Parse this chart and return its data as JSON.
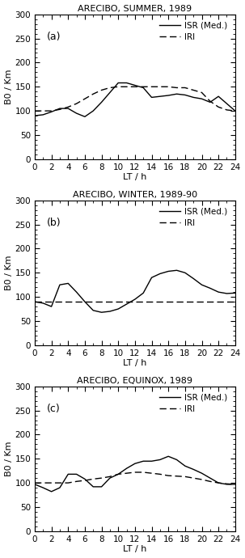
{
  "panels": [
    {
      "title": "ARECIBO, SUMMER, 1989",
      "label": "(a)",
      "isr_x": [
        0,
        1,
        2,
        3,
        4,
        5,
        6,
        7,
        8,
        9,
        10,
        11,
        12,
        13,
        14,
        15,
        16,
        17,
        18,
        19,
        20,
        21,
        22,
        23,
        24
      ],
      "isr_y": [
        90,
        92,
        98,
        105,
        105,
        95,
        88,
        100,
        118,
        138,
        158,
        158,
        153,
        148,
        128,
        130,
        132,
        135,
        133,
        128,
        125,
        118,
        130,
        115,
        100
      ],
      "iri_x": [
        0,
        1,
        2,
        3,
        4,
        5,
        6,
        7,
        8,
        9,
        10,
        11,
        12,
        13,
        14,
        15,
        16,
        17,
        18,
        19,
        20,
        21,
        22,
        23,
        24
      ],
      "iri_y": [
        100,
        100,
        100,
        103,
        108,
        115,
        125,
        135,
        143,
        148,
        150,
        150,
        150,
        150,
        150,
        150,
        150,
        148,
        148,
        143,
        138,
        120,
        108,
        102,
        100
      ]
    },
    {
      "title": "ARECIBO, WINTER, 1989-90",
      "label": "(b)",
      "isr_x": [
        0,
        1,
        2,
        3,
        4,
        5,
        6,
        7,
        8,
        9,
        10,
        11,
        12,
        13,
        14,
        15,
        16,
        17,
        18,
        19,
        20,
        21,
        22,
        23,
        24
      ],
      "isr_y": [
        90,
        87,
        80,
        125,
        128,
        110,
        90,
        72,
        68,
        70,
        75,
        85,
        95,
        108,
        140,
        148,
        153,
        155,
        150,
        138,
        125,
        118,
        110,
        107,
        108
      ],
      "iri_x": [
        0,
        1,
        2,
        3,
        4,
        5,
        6,
        7,
        8,
        9,
        10,
        11,
        12,
        13,
        14,
        15,
        16,
        17,
        18,
        19,
        20,
        21,
        22,
        23,
        24
      ],
      "iri_y": [
        90,
        90,
        90,
        90,
        90,
        90,
        90,
        90,
        90,
        90,
        90,
        90,
        90,
        90,
        90,
        90,
        90,
        90,
        90,
        90,
        90,
        90,
        90,
        90,
        90
      ]
    },
    {
      "title": "ARECIBO, EQUINOX, 1989",
      "label": "(c)",
      "isr_x": [
        0,
        1,
        2,
        3,
        4,
        5,
        6,
        7,
        8,
        9,
        10,
        11,
        12,
        13,
        14,
        15,
        16,
        17,
        18,
        19,
        20,
        21,
        22,
        23,
        24
      ],
      "isr_y": [
        97,
        90,
        82,
        90,
        118,
        118,
        108,
        92,
        92,
        110,
        118,
        130,
        140,
        145,
        145,
        148,
        155,
        148,
        135,
        128,
        120,
        110,
        100,
        97,
        97
      ],
      "iri_x": [
        0,
        1,
        2,
        3,
        4,
        5,
        6,
        7,
        8,
        9,
        10,
        11,
        12,
        13,
        14,
        15,
        16,
        17,
        18,
        19,
        20,
        21,
        22,
        23,
        24
      ],
      "iri_y": [
        100,
        100,
        100,
        100,
        100,
        103,
        105,
        108,
        110,
        113,
        118,
        120,
        122,
        122,
        120,
        118,
        115,
        114,
        113,
        110,
        107,
        103,
        100,
        98,
        97
      ]
    }
  ],
  "xlim": [
    0,
    24
  ],
  "ylim": [
    0,
    300
  ],
  "yticks": [
    0,
    50,
    100,
    150,
    200,
    250,
    300
  ],
  "xticks": [
    0,
    2,
    4,
    6,
    8,
    10,
    12,
    14,
    16,
    18,
    20,
    22,
    24
  ],
  "xlabel": "LT / h",
  "ylabel": "B0 / Km",
  "isr_color": "black",
  "iri_color": "black",
  "bg_color": "white",
  "legend_isr": "ISR (Med.)",
  "legend_iri": "IRI"
}
